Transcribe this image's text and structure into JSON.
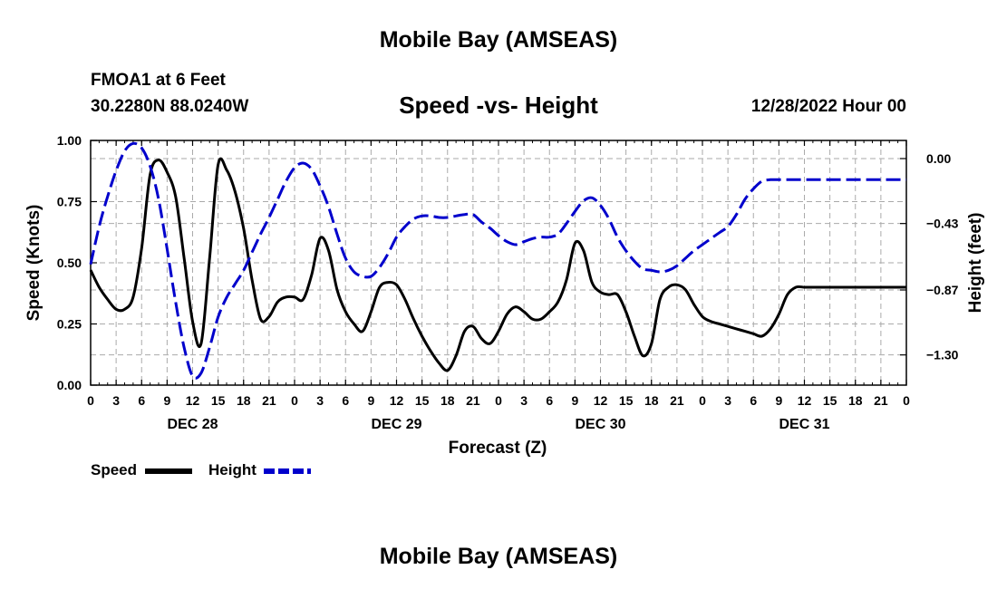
{
  "page": {
    "title": "Mobile Bay (AMSEAS)",
    "station": "FMOA1 at 6 Feet",
    "coordinates": "30.2280N  88.0240W",
    "datetime": "12/28/2022 Hour 00",
    "footer_title": "Mobile Bay (AMSEAS)"
  },
  "legend": {
    "speed_label": "Speed",
    "height_label": "Height"
  },
  "colors": {
    "speed": "#000000",
    "height": "#0000cc",
    "grid": "#aaaaaa"
  },
  "chart_data": {
    "type": "line",
    "title": "Speed -vs- Height",
    "xlabel": "Forecast (Z)",
    "ylabel": "Speed (Knots)",
    "y2label": "Height (feet)",
    "xlim": [
      0,
      96
    ],
    "ylim": [
      0,
      1.0
    ],
    "y2lim": [
      -1.5,
      0.12
    ],
    "grid": true,
    "legend_position": "bottom-left",
    "x_ticks": [
      0,
      3,
      6,
      9,
      12,
      15,
      18,
      21,
      24,
      27,
      30,
      33,
      36,
      39,
      42,
      45,
      48,
      51,
      54,
      57,
      60,
      63,
      66,
      69,
      72,
      75,
      78,
      81,
      84,
      87,
      90,
      93,
      96
    ],
    "x_tick_labels": [
      "0",
      "3",
      "6",
      "9",
      "12",
      "15",
      "18",
      "21",
      "0",
      "3",
      "6",
      "9",
      "12",
      "15",
      "18",
      "21",
      "0",
      "3",
      "6",
      "9",
      "12",
      "15",
      "18",
      "21",
      "0",
      "3",
      "6",
      "9",
      "12",
      "15",
      "18",
      "21",
      "0"
    ],
    "day_labels": [
      {
        "x": 12,
        "label": "DEC 28"
      },
      {
        "x": 36,
        "label": "DEC 29"
      },
      {
        "x": 60,
        "label": "DEC 30"
      },
      {
        "x": 84,
        "label": "DEC 31"
      }
    ],
    "y_ticks": [
      0,
      0.25,
      0.5,
      0.75,
      1.0
    ],
    "y_tick_labels": [
      "0.00",
      "0.25",
      "0.50",
      "0.75",
      "1.00"
    ],
    "y2_ticks": [
      0.0,
      -0.43,
      -0.87,
      -1.3
    ],
    "y2_tick_labels": [
      "0.00",
      "−0.43",
      "−0.87",
      "−1.30"
    ],
    "series": [
      {
        "name": "Speed",
        "axis": "left",
        "style": "solid",
        "x": [
          0,
          1,
          2,
          3,
          4,
          5,
          6,
          7,
          8,
          9,
          10,
          11,
          12,
          13,
          14,
          15,
          16,
          17,
          18,
          19,
          20,
          21,
          22,
          23,
          24,
          25,
          26,
          27,
          28,
          29,
          30,
          31,
          32,
          33,
          34,
          35,
          36,
          37,
          38,
          39,
          40,
          41,
          42,
          43,
          44,
          45,
          46,
          47,
          48,
          49,
          50,
          51,
          52,
          53,
          54,
          55,
          56,
          57,
          58,
          59,
          60,
          61,
          62,
          63,
          64,
          65,
          66,
          67,
          68,
          69,
          70,
          71,
          72,
          73,
          74,
          75,
          76,
          77,
          78,
          79,
          80,
          81,
          82,
          83,
          84,
          85,
          86,
          87,
          88,
          89,
          90,
          91,
          92,
          93,
          94,
          95,
          96
        ],
        "values": [
          0.47,
          0.4,
          0.35,
          0.31,
          0.31,
          0.36,
          0.56,
          0.86,
          0.92,
          0.87,
          0.77,
          0.52,
          0.26,
          0.17,
          0.52,
          0.9,
          0.88,
          0.79,
          0.64,
          0.43,
          0.27,
          0.28,
          0.34,
          0.36,
          0.36,
          0.35,
          0.45,
          0.6,
          0.55,
          0.39,
          0.3,
          0.25,
          0.22,
          0.3,
          0.4,
          0.42,
          0.41,
          0.35,
          0.27,
          0.2,
          0.14,
          0.09,
          0.06,
          0.12,
          0.22,
          0.24,
          0.19,
          0.17,
          0.22,
          0.29,
          0.32,
          0.3,
          0.27,
          0.27,
          0.3,
          0.34,
          0.43,
          0.58,
          0.55,
          0.42,
          0.38,
          0.37,
          0.37,
          0.3,
          0.2,
          0.12,
          0.17,
          0.35,
          0.4,
          0.41,
          0.39,
          0.33,
          0.28,
          0.26,
          0.25,
          0.24,
          0.23,
          0.22,
          0.21,
          0.2,
          0.23,
          0.29,
          0.37,
          0.4,
          0.4,
          0.4,
          0.4,
          0.4,
          0.4,
          0.4,
          0.4,
          0.4,
          0.4,
          0.4,
          0.4,
          0.4,
          0.4
        ]
      },
      {
        "name": "Height",
        "axis": "right",
        "style": "dashed",
        "x": [
          0,
          1,
          2,
          3,
          4,
          5,
          6,
          7,
          8,
          9,
          10,
          11,
          12,
          13,
          14,
          15,
          16,
          17,
          18,
          19,
          20,
          21,
          22,
          23,
          24,
          25,
          26,
          27,
          28,
          29,
          30,
          31,
          32,
          33,
          34,
          35,
          36,
          37,
          38,
          39,
          40,
          41,
          42,
          43,
          44,
          45,
          46,
          47,
          48,
          49,
          50,
          51,
          52,
          53,
          54,
          55,
          56,
          57,
          58,
          59,
          60,
          61,
          62,
          63,
          64,
          65,
          66,
          67,
          68,
          69,
          70,
          71,
          72,
          73,
          74,
          75,
          76,
          77,
          78,
          79,
          80,
          81,
          82,
          83,
          84,
          85,
          86,
          87,
          88,
          89,
          90,
          91,
          92,
          93,
          94,
          95,
          96
        ],
        "values": [
          -0.7,
          -0.45,
          -0.25,
          -0.08,
          0.05,
          0.1,
          0.07,
          -0.05,
          -0.27,
          -0.6,
          -0.95,
          -1.25,
          -1.44,
          -1.42,
          -1.25,
          -1.05,
          -0.92,
          -0.83,
          -0.74,
          -0.62,
          -0.5,
          -0.39,
          -0.27,
          -0.15,
          -0.06,
          -0.03,
          -0.07,
          -0.18,
          -0.32,
          -0.5,
          -0.66,
          -0.75,
          -0.78,
          -0.78,
          -0.72,
          -0.63,
          -0.52,
          -0.45,
          -0.4,
          -0.38,
          -0.38,
          -0.39,
          -0.39,
          -0.38,
          -0.37,
          -0.37,
          -0.42,
          -0.46,
          -0.51,
          -0.55,
          -0.57,
          -0.55,
          -0.53,
          -0.52,
          -0.52,
          -0.5,
          -0.43,
          -0.35,
          -0.28,
          -0.26,
          -0.31,
          -0.4,
          -0.52,
          -0.61,
          -0.68,
          -0.73,
          -0.74,
          -0.75,
          -0.74,
          -0.71,
          -0.66,
          -0.61,
          -0.57,
          -0.53,
          -0.49,
          -0.45,
          -0.37,
          -0.27,
          -0.2,
          -0.15,
          -0.14,
          -0.14,
          -0.14,
          -0.14,
          -0.14,
          -0.14,
          -0.14,
          -0.14,
          -0.14,
          -0.14,
          -0.14,
          -0.14,
          -0.14,
          -0.14,
          -0.14,
          -0.14,
          -0.14
        ]
      }
    ]
  }
}
